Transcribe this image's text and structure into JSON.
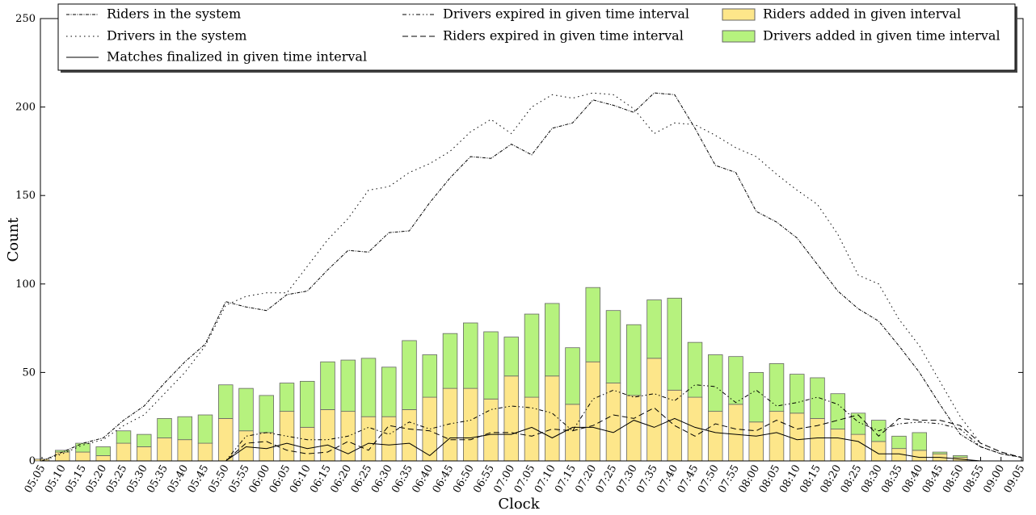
{
  "chart_data": {
    "type": "combo",
    "xlabel": "Clock",
    "ylabel": "Count",
    "categories": [
      "05:05",
      "05:10",
      "05:15",
      "05:20",
      "05:25",
      "05:30",
      "05:35",
      "05:40",
      "05:45",
      "05:50",
      "05:55",
      "06:00",
      "06:05",
      "06:10",
      "06:15",
      "06:20",
      "06:25",
      "06:30",
      "06:35",
      "06:40",
      "06:45",
      "06:50",
      "06:55",
      "07:00",
      "07:05",
      "07:10",
      "07:15",
      "07:20",
      "07:25",
      "07:30",
      "07:35",
      "07:40",
      "07:45",
      "07:50",
      "07:55",
      "08:00",
      "08:05",
      "08:10",
      "08:15",
      "08:20",
      "08:25",
      "08:30",
      "08:35",
      "08:40",
      "08:45",
      "08:50",
      "08:55",
      "09:00",
      "09:05"
    ],
    "ylim": [
      0,
      250
    ],
    "yticks": [
      0,
      50,
      100,
      150,
      200,
      250
    ],
    "series": [
      {
        "name": "Riders in the system",
        "type": "line",
        "dash": "dashdot",
        "color": "#000000",
        "values": [
          0,
          5,
          10,
          13,
          23,
          31,
          44,
          56,
          66,
          90,
          87,
          85,
          94,
          96,
          108,
          119,
          118,
          129,
          130,
          146,
          160,
          172,
          171,
          179,
          173,
          188,
          191,
          204,
          201,
          197,
          208,
          207,
          188,
          167,
          163,
          141,
          135,
          126,
          111,
          96,
          86,
          79,
          65,
          50,
          32,
          15,
          8,
          4,
          2
        ]
      },
      {
        "name": "Drivers in the system",
        "type": "line",
        "dash": "dotted",
        "color": "#000000",
        "values": [
          0,
          4,
          9,
          12,
          20,
          26,
          38,
          50,
          65,
          88,
          93,
          95,
          95,
          110,
          125,
          137,
          153,
          155,
          163,
          168,
          175,
          186,
          193,
          185,
          200,
          207,
          205,
          208,
          207,
          199,
          185,
          191,
          190,
          184,
          177,
          172,
          162,
          153,
          145,
          128,
          105,
          100,
          80,
          65,
          45,
          25,
          10,
          5,
          2
        ]
      },
      {
        "name": "Matches finalized in given time interval",
        "type": "line",
        "dash": "solid",
        "color": "#000000",
        "values": [
          0,
          0,
          0,
          0,
          0,
          0,
          0,
          0,
          0,
          0,
          8,
          7,
          10,
          7,
          9,
          4,
          10,
          9,
          10,
          3,
          13,
          13,
          15,
          15,
          19,
          13,
          19,
          19,
          16,
          23,
          19,
          24,
          19,
          16,
          15,
          14,
          16,
          12,
          13,
          13,
          11,
          4,
          4,
          2,
          2,
          1,
          0,
          0,
          0
        ]
      },
      {
        "name": "Drivers expired in given time interval",
        "type": "line",
        "dash": "dashdotdot",
        "color": "#000000",
        "values": [
          0,
          0,
          0,
          0,
          0,
          0,
          0,
          0,
          0,
          0,
          14,
          16,
          14,
          12,
          12,
          14,
          19,
          15,
          22,
          18,
          21,
          23,
          29,
          31,
          30,
          27,
          17,
          35,
          40,
          36,
          38,
          34,
          43,
          42,
          33,
          40,
          31,
          33,
          36,
          32,
          22,
          17,
          21,
          22,
          21,
          18,
          8,
          4,
          2
        ]
      },
      {
        "name": "Riders expired in given time interval",
        "type": "line",
        "dash": "dashed",
        "color": "#000000",
        "values": [
          0,
          0,
          0,
          0,
          0,
          0,
          0,
          0,
          0,
          0,
          10,
          11,
          6,
          4,
          5,
          11,
          6,
          20,
          18,
          17,
          12,
          12,
          16,
          16,
          14,
          18,
          17,
          20,
          26,
          24,
          30,
          20,
          14,
          21,
          18,
          17,
          23,
          18,
          20,
          23,
          26,
          14,
          24,
          23,
          23,
          20,
          10,
          5,
          2
        ]
      },
      {
        "name": "Riders added in given interval",
        "type": "bar",
        "color": "#fde68a",
        "values": [
          1,
          5,
          5,
          3,
          10,
          8,
          13,
          12,
          10,
          24,
          17,
          16,
          28,
          19,
          29,
          28,
          25,
          25,
          29,
          36,
          41,
          41,
          35,
          48,
          36,
          48,
          32,
          56,
          44,
          37,
          58,
          40,
          36,
          28,
          32,
          22,
          28,
          27,
          24,
          18,
          15,
          11,
          7,
          6,
          4,
          2,
          0,
          0,
          0
        ]
      },
      {
        "name": "Drivers added in given time interval",
        "type": "bar",
        "color": "#b6f27e",
        "values": [
          0,
          1,
          5,
          5,
          7,
          7,
          11,
          13,
          16,
          19,
          24,
          21,
          16,
          26,
          27,
          29,
          33,
          28,
          39,
          24,
          31,
          37,
          38,
          22,
          47,
          41,
          32,
          42,
          41,
          40,
          33,
          52,
          31,
          32,
          27,
          28,
          27,
          22,
          23,
          20,
          12,
          12,
          7,
          10,
          1,
          1,
          0,
          0,
          0
        ]
      }
    ]
  }
}
